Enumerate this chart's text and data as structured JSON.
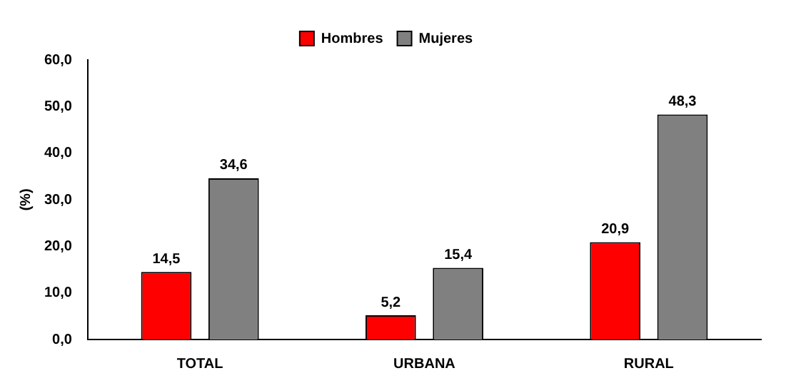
{
  "chart_data": {
    "type": "bar",
    "ylabel": "(%)",
    "categories": [
      "TOTAL",
      "URBANA",
      "RURAL"
    ],
    "series": [
      {
        "name": "Hombres",
        "color": "#ff0000",
        "values": [
          14.5,
          5.2,
          20.9
        ],
        "value_labels": [
          "14,5",
          "5,2",
          "20,9"
        ]
      },
      {
        "name": "Mujeres",
        "color": "#808080",
        "values": [
          34.6,
          15.4,
          48.3
        ],
        "value_labels": [
          "34,6",
          "15,4",
          "48,3"
        ]
      }
    ],
    "ylim": [
      0,
      60
    ],
    "yticks": [
      {
        "value": 0,
        "label": "0,0"
      },
      {
        "value": 10,
        "label": "10,0"
      },
      {
        "value": 20,
        "label": "20,0"
      },
      {
        "value": 30,
        "label": "30,0"
      },
      {
        "value": 40,
        "label": "40,0"
      },
      {
        "value": 50,
        "label": "50,0"
      },
      {
        "value": 60,
        "label": "60,0"
      }
    ],
    "legend": "top",
    "grid": false
  }
}
